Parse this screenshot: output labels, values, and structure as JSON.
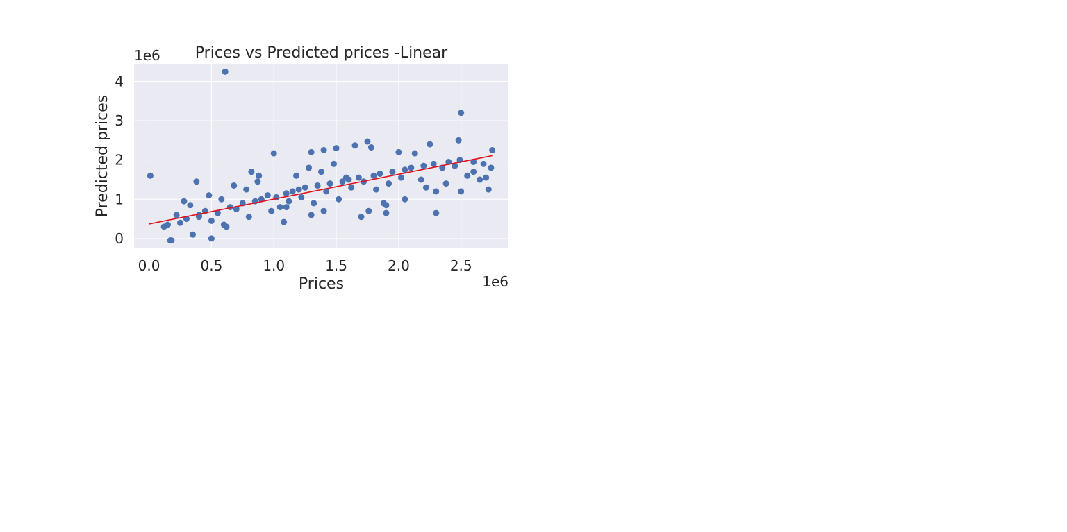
{
  "chart_data": {
    "type": "scatter",
    "title": "Prices vs Predicted prices -Linear",
    "xlabel": "Prices",
    "ylabel": "Predicted prices",
    "x_offset_label": "1e6",
    "y_offset_label": "1e6",
    "xlim": [
      -0.12,
      2.88
    ],
    "ylim": [
      -0.25,
      4.45
    ],
    "x_ticks": [
      0.0,
      0.5,
      1.0,
      1.5,
      2.0,
      2.5
    ],
    "x_tick_labels": [
      "0.0",
      "0.5",
      "1.0",
      "1.5",
      "2.0",
      "2.5"
    ],
    "y_ticks": [
      0,
      1,
      2,
      3,
      4
    ],
    "y_tick_labels": [
      "0",
      "1",
      "2",
      "3",
      "4"
    ],
    "grid": true,
    "colors": {
      "points": "#4c72b0",
      "fit_line": "#e3101a",
      "plot_bg": "#eaeaf2",
      "grid": "#ffffff"
    },
    "series": [
      {
        "x": [
          0.01,
          0.17,
          0.18,
          0.35,
          0.5,
          0.61,
          0.62,
          1.0,
          1.08,
          1.3,
          1.4,
          1.5,
          1.75,
          1.7,
          1.65,
          1.78,
          1.9,
          2.0,
          2.13,
          2.25,
          2.3,
          2.48,
          2.5,
          2.49,
          2.6,
          2.72,
          2.75,
          2.74,
          1.76,
          1.88,
          0.82,
          0.87,
          0.4,
          0.3,
          0.25,
          0.15,
          0.12,
          0.22,
          0.45,
          0.55,
          0.65,
          0.7,
          0.75,
          0.85,
          0.9,
          0.95,
          1.02,
          1.1,
          1.15,
          1.2,
          1.25,
          1.35,
          1.45,
          1.55,
          1.6,
          1.68,
          1.72,
          1.8,
          1.85,
          1.95,
          2.05,
          2.1,
          2.2,
          2.28,
          2.35,
          2.4,
          2.45,
          2.55,
          2.65,
          2.7,
          0.6,
          0.5,
          0.4,
          0.8,
          1.05,
          1.12,
          1.22,
          1.32,
          1.42,
          1.52,
          1.62,
          1.82,
          1.92,
          2.02,
          2.18,
          2.38,
          2.5,
          2.6,
          2.68,
          0.28,
          0.33,
          0.38,
          0.48,
          0.58,
          0.68,
          0.78,
          0.88,
          0.98,
          1.18,
          1.28,
          1.38,
          1.48,
          1.58,
          1.3,
          1.4,
          1.1,
          2.22,
          2.3,
          2.05,
          1.9
        ],
        "y": [
          1.6,
          -0.05,
          -0.05,
          0.1,
          0.0,
          4.25,
          0.3,
          2.17,
          0.42,
          2.2,
          2.25,
          2.3,
          2.47,
          0.55,
          2.37,
          2.32,
          0.65,
          2.2,
          2.17,
          2.4,
          0.65,
          2.5,
          3.2,
          2.0,
          1.95,
          1.25,
          2.25,
          1.8,
          0.7,
          0.9,
          1.7,
          1.45,
          0.55,
          0.5,
          0.4,
          0.35,
          0.3,
          0.6,
          0.7,
          0.65,
          0.8,
          0.75,
          0.9,
          0.95,
          1.0,
          1.1,
          1.05,
          1.15,
          1.2,
          1.25,
          1.3,
          1.35,
          1.4,
          1.45,
          1.5,
          1.55,
          1.45,
          1.6,
          1.65,
          1.7,
          1.75,
          1.8,
          1.85,
          1.9,
          1.8,
          1.95,
          1.85,
          1.6,
          1.5,
          1.55,
          0.35,
          0.45,
          0.6,
          0.55,
          0.8,
          0.95,
          1.05,
          0.9,
          1.2,
          1.0,
          1.3,
          1.25,
          1.4,
          1.55,
          1.5,
          1.4,
          1.2,
          1.7,
          1.9,
          0.95,
          0.85,
          1.45,
          1.1,
          1.0,
          1.35,
          1.25,
          1.6,
          0.7,
          1.6,
          1.8,
          1.7,
          1.9,
          1.55,
          0.6,
          0.7,
          0.8,
          1.3,
          1.2,
          1.0,
          0.85
        ]
      }
    ],
    "fit_line": {
      "x": [
        0.0,
        2.75
      ],
      "y": [
        0.37,
        2.11
      ]
    }
  }
}
